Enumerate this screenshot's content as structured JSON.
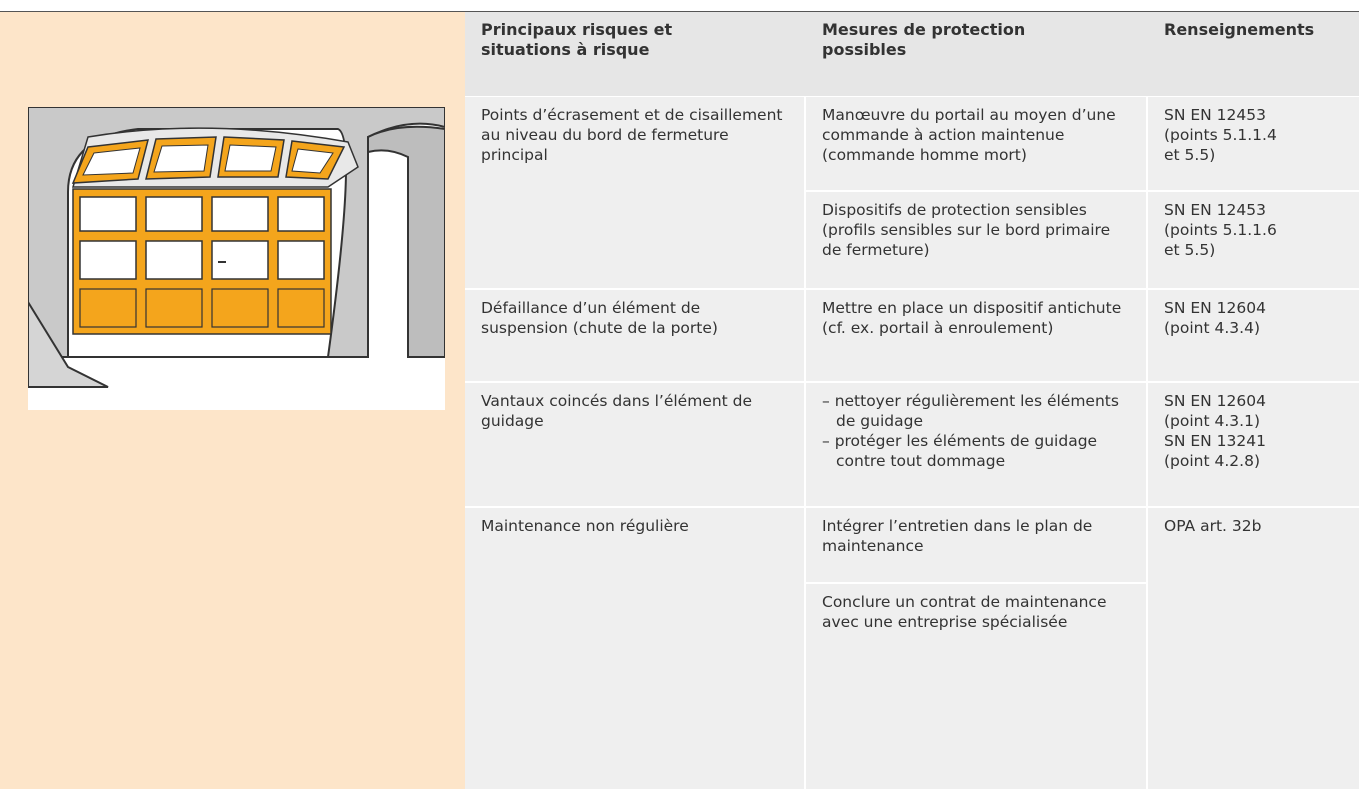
{
  "header": {
    "columns": [
      "Principaux risques et situations à risque",
      "Mesures de protection possibles",
      "Renseignements"
    ]
  },
  "rows": [
    {
      "risk": "Points d’écrasement et de cisaillement au niveau du bord de fermeture principal",
      "measures": [
        {
          "text": "Manœuvre du portail au moyen d’une commande à action maintenue (commande homme mort)",
          "reference": [
            "SN EN 12453",
            "(points 5.1.1.4",
            "et 5.5)"
          ]
        },
        {
          "text": "Dispositifs de protection sensibles (profils sensibles sur le bord primaire de fermeture)",
          "reference": [
            "SN EN 12453",
            "(points 5.1.1.6",
            "et 5.5)"
          ]
        }
      ]
    },
    {
      "risk": "Défaillance d’un élément de suspension (chute de la porte)",
      "measures": [
        {
          "text": "Mettre en place un dispositif antichute (cf. ex. portail à enroulement)",
          "reference": [
            "SN EN 12604",
            "(point 4.3.4)"
          ]
        }
      ]
    },
    {
      "risk": "Vantaux coincés dans l’élément de guidage",
      "measures": [
        {
          "items": [
            "nettoyer régulièrement les éléments de guidage",
            "protéger les éléments de guidage contre tout dommage"
          ],
          "reference": [
            "SN EN 12604",
            "(point 4.3.1)",
            "SN EN 13241",
            "(point 4.2.8)"
          ]
        }
      ]
    },
    {
      "risk": "Maintenance non régulière",
      "measures": [
        {
          "text": "Intégrer l’entretien dans le plan de maintenance"
        },
        {
          "text": "Conclure un contrat de maintenance avec une entreprise spécialisée"
        }
      ],
      "reference": [
        "OPA art. 32b"
      ]
    }
  ]
}
